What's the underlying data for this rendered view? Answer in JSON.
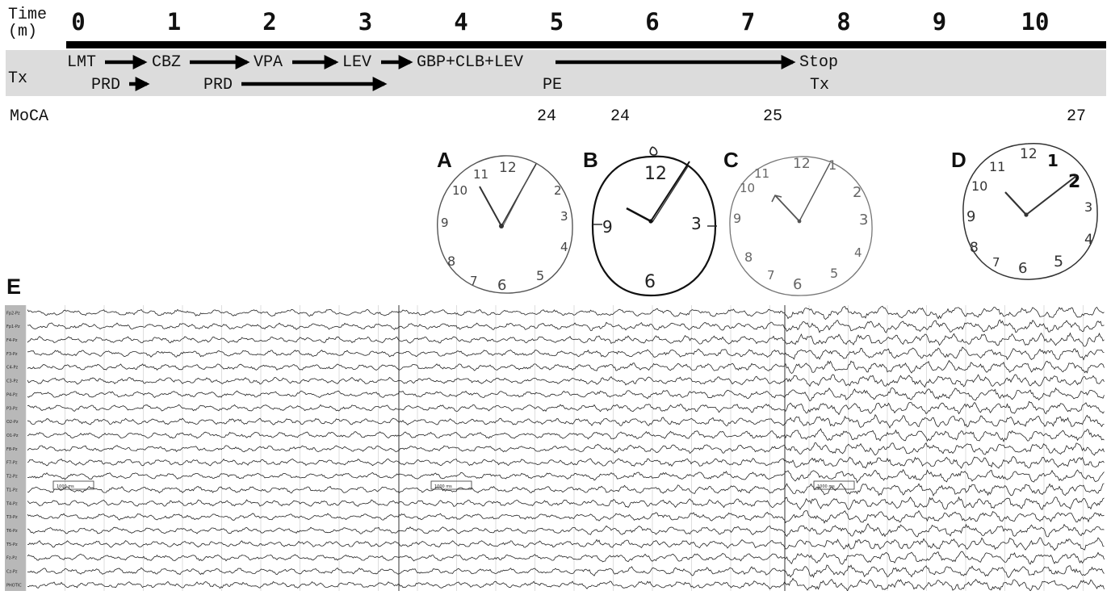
{
  "timeline": {
    "label": "Time\n(m)",
    "label_line1": "Time",
    "label_line2": "(m)",
    "ticks": [
      "0",
      "1",
      "2",
      "3",
      "4",
      "5",
      "6",
      "7",
      "8",
      "9",
      "10"
    ]
  },
  "treatment": {
    "label": "Tx",
    "row1": [
      "LMT",
      "CBZ",
      "VPA",
      "LEV",
      "GBP+CLB+LEV",
      "Stop"
    ],
    "row2": [
      "PRD",
      "PRD",
      "PE",
      "Tx"
    ]
  },
  "moca": {
    "label": "MoCA",
    "scores": [
      {
        "month": 5,
        "value": "24"
      },
      {
        "month": 5.65,
        "value": "24"
      },
      {
        "month": 7,
        "value": "25"
      },
      {
        "month": 10,
        "value": "27"
      }
    ]
  },
  "clocks": [
    {
      "letter": "A",
      "numbers": [
        "11",
        "12",
        "10",
        "2",
        "3",
        "9",
        "4",
        "8",
        "7",
        "6",
        "5"
      ]
    },
    {
      "letter": "B",
      "numbers": [
        "12",
        "9",
        "3",
        "6"
      ]
    },
    {
      "letter": "C",
      "numbers": [
        "10",
        "11",
        "12",
        "1",
        "2",
        "3",
        "9",
        "4",
        "8",
        "7",
        "6",
        "5"
      ]
    },
    {
      "letter": "D",
      "numbers": [
        "12",
        "1",
        "10",
        "11",
        "2",
        "3",
        "9",
        "4",
        "8",
        "7",
        "6",
        "5"
      ]
    }
  ],
  "eeg": {
    "label": "E",
    "channels": [
      "Fp2-Pz",
      "Fp1-Pz",
      "F4-Pz",
      "F3-Pz",
      "C4-Pz",
      "C3-Pz",
      "P4-Pz",
      "P3-Pz",
      "O2-Pz",
      "O1-Pz",
      "F8-Pz",
      "F7-Pz",
      "T2-Pz",
      "T1-Pz",
      "T4-Pz",
      "T3-Pz",
      "T6-Pz",
      "T5-Pz",
      "Fz-Pz",
      "Cz-Pz",
      "PHOTIC"
    ],
    "scale_label": "1000 ms"
  },
  "colors": {
    "band": "#dcdcdc",
    "ink": "#111111",
    "pencil": "#555555"
  }
}
